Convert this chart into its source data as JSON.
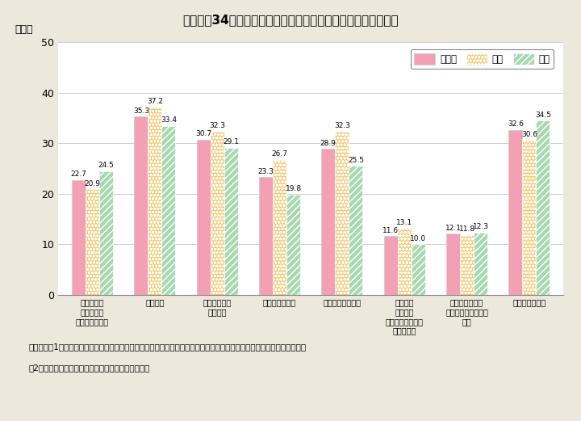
{
  "title": "I −特−34図　学び直しのための機会や方法についての認知度",
  "title_display": "イ－特－34図　学び直しのための機会や方法についての認知度",
  "ylabel": "（％）",
  "yticks": [
    0,
    10,
    20,
    30,
    40,
    50
  ],
  "ylim": [
    0,
    50
  ],
  "categories": [
    "大学等での\n職業実践力\n育成プログラム",
    "放送大学",
    "公共職業能力\n開発施設",
    "求職者支援制度",
    "教育訓練給付制度",
    "自治体の\n男女共同\nセンターにおける\n教室・講座",
    "自治体の創業・\n起業に関する教室・\n講座",
    "どれも知らない"
  ],
  "series": {
    "男女計": [
      22.7,
      35.3,
      30.7,
      23.3,
      28.9,
      11.6,
      12.1,
      32.6
    ],
    "女性": [
      20.9,
      37.2,
      32.3,
      26.7,
      32.3,
      13.1,
      11.8,
      30.6
    ],
    "男性": [
      24.5,
      33.4,
      29.1,
      19.8,
      25.5,
      10.0,
      12.3,
      34.5
    ]
  },
  "legend_labels": [
    "男女計",
    "女性",
    "男性"
  ],
  "color_danjoukei": "#F4A0B4",
  "color_josei": "#F5C870",
  "color_dansei": "#A8D8B0",
  "footnote1": "（備考）　1．「多様な選択を可能にする学びに関する調査」（平成３０年度内閣府委託調査・株式会社創建）より作成。",
  "footnote2": "　2．女性３，０００人，男性３，０００人が回答。",
  "bg_color": "#EDE8DC",
  "plot_bg_color": "#FFFFFF",
  "title_bg_color": "#4DBBBB",
  "bar_width": 0.22
}
